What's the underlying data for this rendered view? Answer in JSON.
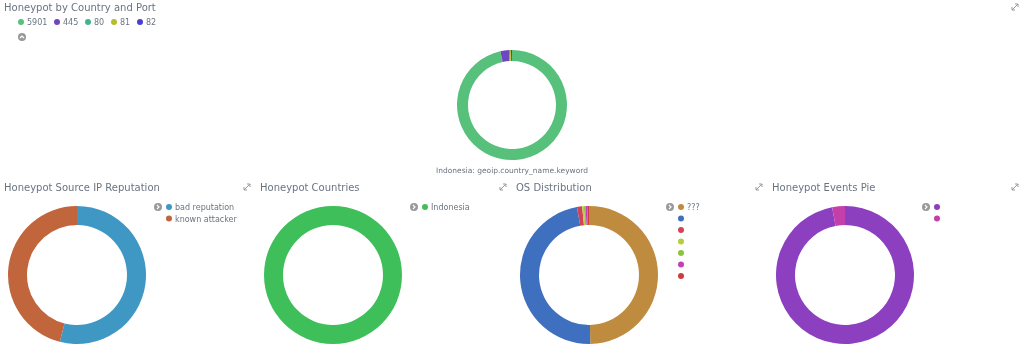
{
  "chart_data": [
    {
      "type": "donut",
      "title": "Honeypot by Country and Port",
      "xlabel": "Indonesia: geoip.country_name.keyword",
      "categories": [
        "5901",
        "445",
        "80",
        "81",
        "82"
      ],
      "values": [
        96.6,
        2.5,
        0.3,
        0.3,
        0.3
      ],
      "colors": [
        "#57c17b",
        "#6f45c0",
        "#3fb58e",
        "#b4bd2f",
        "#4a3fcf"
      ],
      "legend": "top left"
    },
    {
      "type": "donut",
      "title": "Honeypot Source IP Reputation",
      "categories": [
        "bad reputation",
        "known attacker"
      ],
      "values": [
        54,
        46
      ],
      "colors": [
        "#3f98c4",
        "#c1653c"
      ],
      "legend": "top right"
    },
    {
      "type": "donut",
      "title": "Honeypot Countries",
      "categories": [
        "Indonesia"
      ],
      "values": [
        100
      ],
      "colors": [
        "#3fbf5a"
      ],
      "legend": "top right"
    },
    {
      "type": "donut",
      "title": "OS Distribution",
      "categories": [
        "???",
        null,
        null,
        null,
        null,
        null,
        null
      ],
      "values": [
        49.7,
        47.5,
        1.2,
        0.4,
        0.4,
        0.4,
        0.4
      ],
      "colors": [
        "#bf8c3f",
        "#3f6fbf",
        "#d04455",
        "#b6ce3c",
        "#8ac43e",
        "#c43fb7",
        "#cc3d3d"
      ],
      "legend": "top right"
    },
    {
      "type": "donut",
      "title": "Honeypot Events Pie",
      "categories": [
        null,
        null
      ],
      "values": [
        97,
        3
      ],
      "colors": [
        "#8c3fbf",
        "#c43fa9"
      ]
    }
  ]
}
